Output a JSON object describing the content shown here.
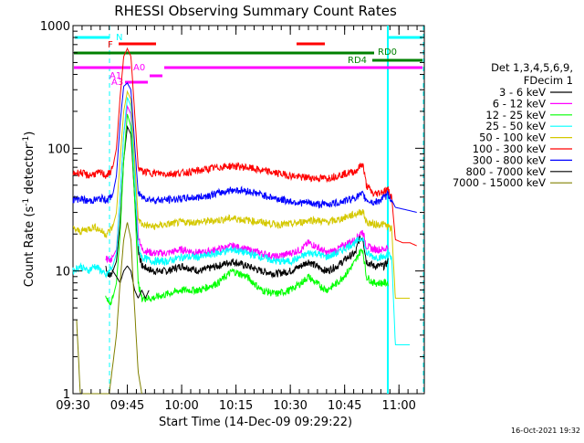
{
  "chart_data": {
    "type": "line",
    "title": "RHESSI Observing Summary Count Rates",
    "xlabel": "Start Time (14-Dec-09 09:29:22)",
    "ylabel_main": "Count Rate (s",
    "ylabel_sup1": "-1",
    "ylabel_mid": " detector",
    "ylabel_sup2": "-1",
    "ylabel_end": ")",
    "y_scale": "log",
    "ylim": [
      1,
      1000
    ],
    "xlim_minutes": [
      0,
      97
    ],
    "x_tick_labels": [
      {
        "t": 0,
        "label": "09:30"
      },
      {
        "t": 15,
        "label": "09:45"
      },
      {
        "t": 30,
        "label": "10:00"
      },
      {
        "t": 45,
        "label": "10:15"
      },
      {
        "t": 60,
        "label": "10:30"
      },
      {
        "t": 75,
        "label": "10:45"
      },
      {
        "t": 90,
        "label": "11:00"
      }
    ],
    "y_tick_labels": [
      {
        "v": 1,
        "label": "1"
      },
      {
        "v": 10,
        "label": "10"
      },
      {
        "v": 100,
        "label": "100"
      },
      {
        "v": 1000,
        "label": "1000"
      }
    ],
    "legend": {
      "header1": "Det 1,3,4,5,6,9,",
      "header2": "FDecim 1",
      "placement": "right"
    },
    "series": [
      {
        "name": "3 - 6 keV",
        "color": "#000000",
        "points": [
          [
            9,
            11
          ],
          [
            10,
            9
          ],
          [
            11,
            10
          ],
          [
            12,
            12
          ],
          [
            13,
            25
          ],
          [
            14,
            80
          ],
          [
            15,
            150
          ],
          [
            16,
            130
          ],
          [
            17,
            40
          ],
          [
            18,
            15
          ],
          [
            19,
            11
          ],
          [
            22,
            10
          ],
          [
            26,
            10
          ],
          [
            30,
            11
          ],
          [
            35,
            10
          ],
          [
            40,
            11
          ],
          [
            44,
            12
          ],
          [
            48,
            11
          ],
          [
            52,
            10
          ],
          [
            56,
            9.5
          ],
          [
            60,
            10
          ],
          [
            63,
            11
          ],
          [
            65,
            12
          ],
          [
            67,
            11
          ],
          [
            70,
            10
          ],
          [
            73,
            11
          ],
          [
            76,
            13
          ],
          [
            78,
            14
          ],
          [
            79,
            18
          ],
          [
            80,
            19
          ],
          [
            81,
            12
          ],
          [
            83,
            11
          ],
          [
            85,
            11
          ],
          [
            86,
            11
          ],
          [
            87,
            12
          ]
        ]
      },
      {
        "name": "6 - 12 keV",
        "color": "#ff00ff",
        "points": [
          [
            9,
            13
          ],
          [
            10,
            12
          ],
          [
            11,
            13
          ],
          [
            12,
            15
          ],
          [
            13,
            40
          ],
          [
            14,
            130
          ],
          [
            15,
            220
          ],
          [
            16,
            190
          ],
          [
            17,
            60
          ],
          [
            18,
            20
          ],
          [
            19,
            15
          ],
          [
            22,
            14
          ],
          [
            26,
            14
          ],
          [
            30,
            15
          ],
          [
            35,
            14
          ],
          [
            40,
            15
          ],
          [
            44,
            16
          ],
          [
            48,
            15
          ],
          [
            52,
            14
          ],
          [
            56,
            13
          ],
          [
            60,
            14
          ],
          [
            63,
            15
          ],
          [
            65,
            17
          ],
          [
            67,
            16
          ],
          [
            70,
            14
          ],
          [
            73,
            15
          ],
          [
            76,
            17
          ],
          [
            78,
            18
          ],
          [
            79,
            20
          ],
          [
            80,
            21
          ],
          [
            81,
            16
          ],
          [
            83,
            15
          ],
          [
            85,
            15
          ],
          [
            86,
            15
          ],
          [
            87,
            16
          ]
        ]
      },
      {
        "name": "12 - 25 keV",
        "color": "#00ff00",
        "points": [
          [
            9,
            6
          ],
          [
            10,
            5.5
          ],
          [
            11,
            6
          ],
          [
            12,
            8
          ],
          [
            13,
            20
          ],
          [
            14,
            80
          ],
          [
            15,
            190
          ],
          [
            16,
            150
          ],
          [
            17,
            40
          ],
          [
            18,
            8
          ],
          [
            19,
            6
          ],
          [
            22,
            6
          ],
          [
            26,
            6.5
          ],
          [
            30,
            7
          ],
          [
            35,
            7
          ],
          [
            40,
            8
          ],
          [
            44,
            10
          ],
          [
            48,
            9
          ],
          [
            52,
            7
          ],
          [
            56,
            6.5
          ],
          [
            60,
            7
          ],
          [
            63,
            8
          ],
          [
            65,
            9
          ],
          [
            67,
            8
          ],
          [
            70,
            7
          ],
          [
            73,
            8
          ],
          [
            76,
            10
          ],
          [
            78,
            12
          ],
          [
            79,
            14
          ],
          [
            80,
            15
          ],
          [
            81,
            9
          ],
          [
            83,
            8
          ],
          [
            85,
            8
          ],
          [
            86,
            8
          ],
          [
            87,
            8
          ]
        ]
      },
      {
        "name": "25 - 50 keV",
        "color": "#00ffff",
        "points": [
          [
            0,
            10
          ],
          [
            2,
            11
          ],
          [
            4,
            10
          ],
          [
            6,
            11
          ],
          [
            8,
            10
          ],
          [
            9,
            9
          ],
          [
            10,
            10
          ],
          [
            11,
            11
          ],
          [
            12,
            14
          ],
          [
            13,
            40
          ],
          [
            14,
            130
          ],
          [
            15,
            260
          ],
          [
            16,
            220
          ],
          [
            17,
            60
          ],
          [
            18,
            16
          ],
          [
            19,
            13
          ],
          [
            22,
            12
          ],
          [
            26,
            12
          ],
          [
            30,
            13
          ],
          [
            35,
            13
          ],
          [
            40,
            14
          ],
          [
            44,
            15
          ],
          [
            48,
            14
          ],
          [
            52,
            13
          ],
          [
            56,
            12
          ],
          [
            60,
            12
          ],
          [
            63,
            13
          ],
          [
            65,
            14
          ],
          [
            67,
            14
          ],
          [
            70,
            13
          ],
          [
            73,
            14
          ],
          [
            76,
            16
          ],
          [
            78,
            17
          ],
          [
            79,
            18
          ],
          [
            80,
            19
          ],
          [
            81,
            14
          ],
          [
            83,
            13
          ],
          [
            85,
            13
          ],
          [
            86,
            13
          ],
          [
            87,
            14
          ],
          [
            88,
            13
          ],
          [
            89,
            2.5
          ],
          [
            91,
            2.5
          ],
          [
            93,
            2.5
          ]
        ]
      },
      {
        "name": "50 - 100 keV",
        "color": "#d4c800",
        "points": [
          [
            0,
            22
          ],
          [
            2,
            21
          ],
          [
            4,
            22
          ],
          [
            6,
            23
          ],
          [
            8,
            21
          ],
          [
            9,
            20
          ],
          [
            10,
            21
          ],
          [
            11,
            23
          ],
          [
            12,
            30
          ],
          [
            13,
            80
          ],
          [
            14,
            200
          ],
          [
            15,
            290
          ],
          [
            16,
            250
          ],
          [
            17,
            80
          ],
          [
            18,
            27
          ],
          [
            19,
            24
          ],
          [
            22,
            23
          ],
          [
            26,
            24
          ],
          [
            30,
            25
          ],
          [
            35,
            25
          ],
          [
            40,
            26
          ],
          [
            44,
            27
          ],
          [
            48,
            26
          ],
          [
            52,
            25
          ],
          [
            56,
            24
          ],
          [
            60,
            24
          ],
          [
            63,
            25
          ],
          [
            65,
            26
          ],
          [
            67,
            26
          ],
          [
            70,
            25
          ],
          [
            73,
            26
          ],
          [
            76,
            28
          ],
          [
            78,
            29
          ],
          [
            79,
            30
          ],
          [
            80,
            31
          ],
          [
            81,
            25
          ],
          [
            83,
            24
          ],
          [
            85,
            24
          ],
          [
            86,
            24
          ],
          [
            87,
            23
          ],
          [
            88,
            22
          ],
          [
            89,
            6
          ],
          [
            91,
            6
          ],
          [
            93,
            6
          ]
        ]
      },
      {
        "name": "100 - 300 keV",
        "color": "#ff0000",
        "points": [
          [
            0,
            62
          ],
          [
            2,
            64
          ],
          [
            4,
            60
          ],
          [
            6,
            62
          ],
          [
            8,
            63
          ],
          [
            9,
            60
          ],
          [
            10,
            62
          ],
          [
            11,
            70
          ],
          [
            12,
            100
          ],
          [
            13,
            260
          ],
          [
            14,
            560
          ],
          [
            15,
            650
          ],
          [
            16,
            560
          ],
          [
            17,
            200
          ],
          [
            18,
            70
          ],
          [
            19,
            65
          ],
          [
            22,
            63
          ],
          [
            26,
            62
          ],
          [
            30,
            63
          ],
          [
            35,
            66
          ],
          [
            40,
            70
          ],
          [
            44,
            72
          ],
          [
            48,
            70
          ],
          [
            52,
            66
          ],
          [
            56,
            63
          ],
          [
            60,
            60
          ],
          [
            63,
            58
          ],
          [
            65,
            58
          ],
          [
            67,
            57
          ],
          [
            70,
            57
          ],
          [
            73,
            60
          ],
          [
            76,
            63
          ],
          [
            78,
            65
          ],
          [
            79,
            70
          ],
          [
            80,
            75
          ],
          [
            81,
            50
          ],
          [
            83,
            42
          ],
          [
            85,
            44
          ],
          [
            86,
            45
          ],
          [
            87,
            46
          ],
          [
            88,
            40
          ],
          [
            89,
            18
          ],
          [
            91,
            17
          ],
          [
            93,
            17
          ],
          [
            95,
            16
          ]
        ]
      },
      {
        "name": "300 - 800 keV",
        "color": "#0000ff",
        "points": [
          [
            0,
            38
          ],
          [
            2,
            39
          ],
          [
            4,
            37
          ],
          [
            6,
            38
          ],
          [
            8,
            39
          ],
          [
            9,
            38
          ],
          [
            10,
            39
          ],
          [
            11,
            42
          ],
          [
            12,
            60
          ],
          [
            13,
            160
          ],
          [
            14,
            320
          ],
          [
            15,
            340
          ],
          [
            16,
            300
          ],
          [
            17,
            110
          ],
          [
            18,
            43
          ],
          [
            19,
            40
          ],
          [
            22,
            38
          ],
          [
            26,
            38
          ],
          [
            30,
            39
          ],
          [
            35,
            40
          ],
          [
            40,
            43
          ],
          [
            44,
            46
          ],
          [
            48,
            45
          ],
          [
            52,
            42
          ],
          [
            56,
            39
          ],
          [
            60,
            37
          ],
          [
            63,
            36
          ],
          [
            65,
            36
          ],
          [
            67,
            35
          ],
          [
            70,
            35
          ],
          [
            73,
            36
          ],
          [
            76,
            38
          ],
          [
            78,
            40
          ],
          [
            79,
            41
          ],
          [
            80,
            42
          ],
          [
            81,
            38
          ],
          [
            83,
            36
          ],
          [
            85,
            38
          ],
          [
            86,
            40
          ],
          [
            87,
            42
          ],
          [
            88,
            38
          ],
          [
            89,
            33
          ],
          [
            91,
            32
          ],
          [
            93,
            31
          ],
          [
            95,
            30
          ]
        ]
      },
      {
        "name": "800 - 7000 keV",
        "color": "#000000",
        "points": [
          [
            11,
            10
          ],
          [
            12,
            9
          ],
          [
            13,
            8
          ],
          [
            14,
            10
          ],
          [
            15,
            11
          ],
          [
            16,
            10
          ],
          [
            17,
            7
          ],
          [
            18,
            6
          ],
          [
            19,
            7
          ],
          [
            20,
            6
          ],
          [
            21,
            7
          ]
        ]
      },
      {
        "name": "7000 - 15000 keV",
        "color": "#808000",
        "points": [
          [
            1,
            4
          ],
          [
            2,
            1
          ],
          [
            10,
            1
          ],
          [
            12,
            3
          ],
          [
            13,
            8
          ],
          [
            14,
            18
          ],
          [
            15,
            25
          ],
          [
            16,
            18
          ],
          [
            17,
            5
          ],
          [
            18,
            1.5
          ],
          [
            19,
            1
          ]
        ]
      }
    ],
    "annotations": [
      {
        "label": "N",
        "color": "#00ffff"
      },
      {
        "label": "F",
        "color": "#ff0000"
      },
      {
        "label": "RD0",
        "color": "#008000"
      },
      {
        "label": "RD4",
        "color": "#008000"
      },
      {
        "label": "A0",
        "color": "#ff00ff"
      },
      {
        "label": "A1",
        "color": "#ff00ff"
      },
      {
        "label": "A3",
        "color": "#ff00ff"
      }
    ],
    "grid": false,
    "timestamp": "16-Oct-2021 19:32"
  }
}
